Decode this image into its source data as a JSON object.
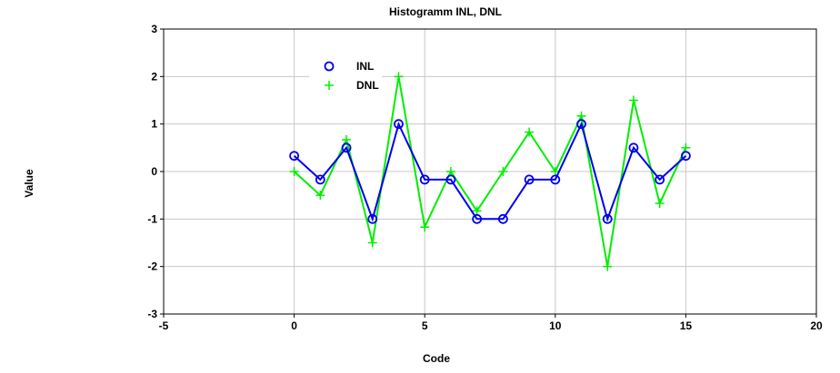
{
  "chart_data": {
    "type": "line",
    "title": "Histogramm INL, DNL",
    "xlabel": "Code",
    "ylabel": "Value",
    "xlim": [
      -5,
      20
    ],
    "ylim": [
      -3,
      3
    ],
    "xticks": [
      -5,
      0,
      5,
      10,
      15,
      20
    ],
    "yticks": [
      3,
      2,
      1,
      0,
      -1,
      -2,
      -3
    ],
    "grid": true,
    "legend": "top-left",
    "series": [
      {
        "name": "INL",
        "color": "#0000ee",
        "marker": "circle",
        "x": [
          0,
          1,
          2,
          3,
          4,
          5,
          6,
          7,
          8,
          9,
          10,
          11,
          12,
          13,
          14,
          15
        ],
        "values": [
          0.33,
          -0.17,
          0.5,
          -1.0,
          1.0,
          -0.17,
          -0.17,
          -1.0,
          -1.0,
          -0.17,
          -0.17,
          1.0,
          -1.0,
          0.5,
          -0.17,
          0.33
        ]
      },
      {
        "name": "DNL",
        "color": "#00ee00",
        "marker": "plus",
        "x": [
          0,
          1,
          2,
          3,
          4,
          5,
          6,
          7,
          8,
          9,
          10,
          11,
          12,
          13,
          14,
          15
        ],
        "values": [
          0.0,
          -0.5,
          0.67,
          -1.5,
          2.0,
          -1.17,
          0.0,
          -0.83,
          0.0,
          0.83,
          0.0,
          1.17,
          -2.0,
          1.5,
          -0.67,
          0.5
        ]
      }
    ]
  }
}
